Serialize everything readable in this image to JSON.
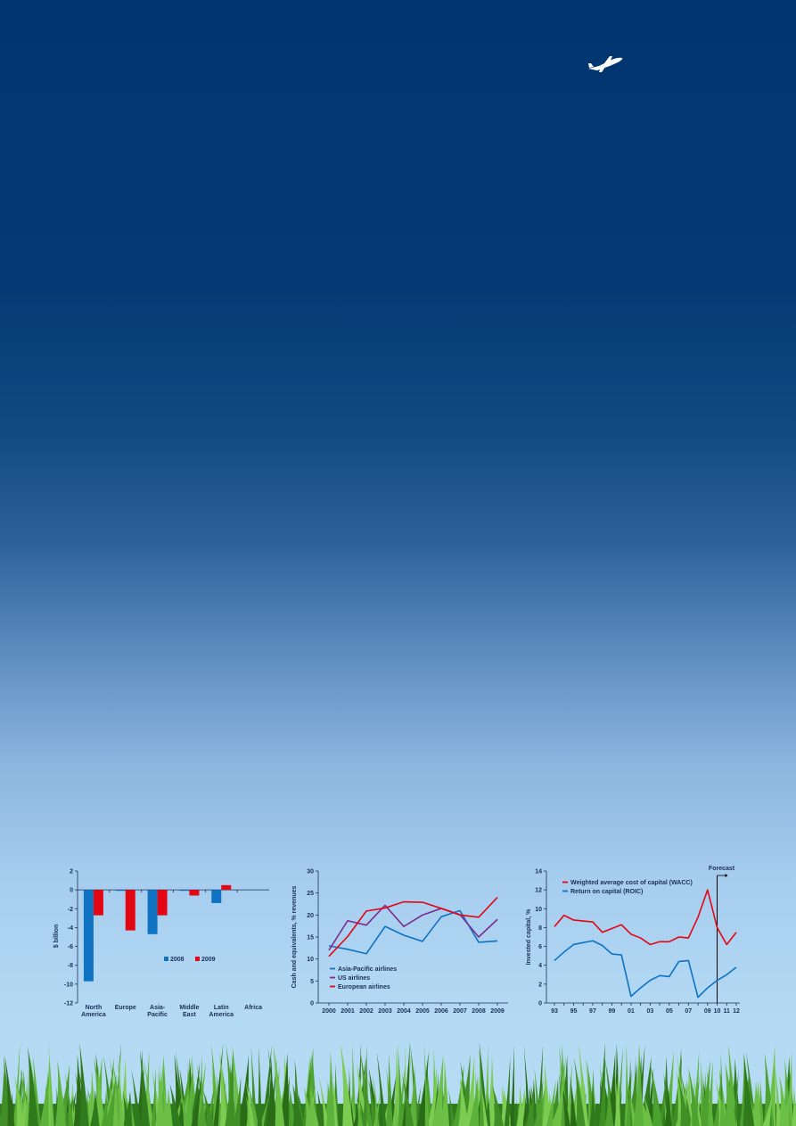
{
  "colors": {
    "sky_top": "#003570",
    "sky_bottom": "#b7dcf5",
    "blue_series": "#0f72c2",
    "red_series": "#e30613",
    "purple_series": "#7b2d8e",
    "axis_text": "#1b2f58"
  },
  "icons": {
    "plane": "airplane-icon",
    "grass": "grass-strip"
  },
  "chart_data": [
    {
      "type": "bar",
      "title": "",
      "xlabel": "",
      "ylabel": "$ billion",
      "ylim": [
        -12,
        2
      ],
      "yticks": [
        "2",
        "0",
        "-2",
        "-4",
        "-6",
        "-8",
        "-10",
        "-12"
      ],
      "categories": [
        "North America",
        "Europe",
        "Asia-Pacific",
        "Middle East",
        "Latin America",
        "Africa"
      ],
      "category_labels": [
        [
          "North",
          "America"
        ],
        [
          "Europe"
        ],
        [
          "Asia-",
          "Pacific"
        ],
        [
          "Middle",
          "East"
        ],
        [
          "Latin",
          "America"
        ],
        [
          "Africa"
        ]
      ],
      "series": [
        {
          "name": "2008",
          "color": "#0f72c2",
          "values": [
            -9.7,
            -0.1,
            -4.7,
            -0.1,
            -1.4,
            0
          ]
        },
        {
          "name": "2009",
          "color": "#e30613",
          "values": [
            -2.7,
            -4.3,
            -2.7,
            -0.6,
            0.5,
            0
          ]
        }
      ],
      "legend_position": "bottom-right"
    },
    {
      "type": "line",
      "title": "",
      "xlabel": "",
      "ylabel": "Cash and equivalents, % revenues",
      "ylim": [
        0,
        30
      ],
      "yticks": [
        "0",
        "5",
        "10",
        "15",
        "20",
        "25",
        "30"
      ],
      "x": [
        "2000",
        "2001",
        "2002",
        "2003",
        "2004",
        "2005",
        "2006",
        "2007",
        "2008",
        "2009"
      ],
      "series": [
        {
          "name": "Asia-Pacific airlines",
          "color": "#0f72c2",
          "values": [
            13,
            12.2,
            11.2,
            17.4,
            15.4,
            14,
            19.6,
            21,
            13.8,
            14.1
          ]
        },
        {
          "name": "US airlines",
          "color": "#7b2d8e",
          "values": [
            12,
            18.7,
            17.7,
            22.2,
            17.4,
            20,
            21.5,
            20.1,
            15,
            19
          ]
        },
        {
          "name": "European airlines",
          "color": "#e30613",
          "values": [
            10.6,
            15.1,
            20.9,
            21.6,
            23,
            22.9,
            21.5,
            20,
            19.5,
            24
          ]
        }
      ],
      "legend_position": "bottom-left"
    },
    {
      "type": "line",
      "title": "",
      "xlabel": "",
      "ylabel": "Invested capital, %",
      "ylim": [
        0,
        14
      ],
      "yticks": [
        "0",
        "2",
        "4",
        "6",
        "8",
        "10",
        "12",
        "14"
      ],
      "x": [
        "93",
        "94",
        "95",
        "96",
        "97",
        "98",
        "99",
        "00",
        "01",
        "02",
        "03",
        "04",
        "05",
        "06",
        "07",
        "08",
        "09",
        "10",
        "11",
        "12"
      ],
      "x_tick_labels": [
        "93",
        "95",
        "97",
        "99",
        "01",
        "03",
        "05",
        "07",
        "09",
        "10",
        "11",
        "12"
      ],
      "series": [
        {
          "name": "Weighted average cost of capital (WACC)",
          "color": "#e30613",
          "values": [
            8.1,
            9.3,
            8.8,
            8.7,
            8.6,
            7.5,
            7.9,
            8.3,
            7.3,
            6.9,
            6.2,
            6.5,
            6.5,
            7,
            6.9,
            9.1,
            12,
            8,
            6.2,
            7.5
          ]
        },
        {
          "name": "Return on capital (ROIC)",
          "color": "#0f72c2",
          "values": [
            4.5,
            5.4,
            6.2,
            6.4,
            6.6,
            6.1,
            5.2,
            5.1,
            0.7,
            1.6,
            2.4,
            2.9,
            2.8,
            4.4,
            4.5,
            0.6,
            1.6,
            2.4,
            3,
            3.8
          ]
        }
      ],
      "annotation": "Forecast",
      "forecast_start": "10",
      "legend_position": "top-left"
    }
  ]
}
